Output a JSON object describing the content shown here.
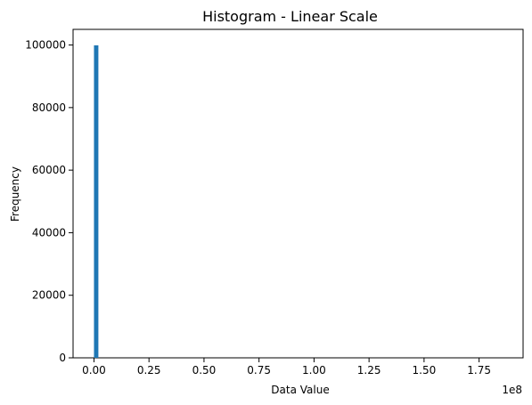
{
  "chart_data": {
    "type": "bar",
    "title": "Histogram - Linear Scale",
    "xlabel": "Data Value",
    "ylabel": "Frequency",
    "x_offset_text": "1e8",
    "xlim": [
      -0.095,
      1.95
    ],
    "ylim": [
      0,
      105000
    ],
    "x_ticks": [
      0.0,
      0.25,
      0.5,
      0.75,
      1.0,
      1.25,
      1.5,
      1.75
    ],
    "x_tick_labels": [
      "0.00",
      "0.25",
      "0.50",
      "0.75",
      "1.00",
      "1.25",
      "1.50",
      "1.75"
    ],
    "y_ticks": [
      0,
      20000,
      40000,
      60000,
      80000,
      100000
    ],
    "y_tick_labels": [
      "0",
      "20000",
      "40000",
      "60000",
      "80000",
      "100000"
    ],
    "bins": [
      {
        "start": 0.0,
        "end": 0.02,
        "value": 99900
      }
    ],
    "bar_color": "#1f77b4",
    "grid": false,
    "legend": "none"
  }
}
